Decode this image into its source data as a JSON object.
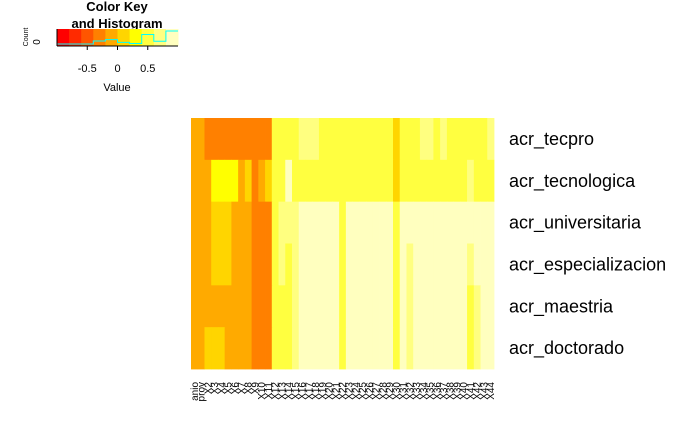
{
  "chart_data": {
    "type": "heatmap",
    "title": "",
    "rows": [
      "acr_tecpro",
      "acr_tecnologica",
      "acr_universitaria",
      "acr_especializacion",
      "acr_maestria",
      "acr_doctorado"
    ],
    "columns": [
      "anio",
      "prov",
      "X2",
      "X3",
      "X4",
      "X5",
      "X6",
      "X7",
      "X8",
      "X9",
      "X10",
      "X11",
      "X12",
      "X13",
      "X14",
      "X15",
      "X16",
      "X17",
      "X18",
      "X19",
      "X20",
      "X21",
      "X22",
      "X23",
      "X24",
      "X25",
      "X26",
      "X27",
      "X28",
      "X29",
      "X30",
      "X31",
      "X32",
      "X33",
      "X34",
      "X35",
      "X36",
      "X37",
      "X38",
      "X39",
      "X40",
      "X41",
      "X42",
      "X43",
      "X44"
    ],
    "values": [
      [
        -0.1,
        -0.1,
        -0.3,
        -0.3,
        -0.3,
        -0.3,
        -0.3,
        -0.3,
        -0.3,
        -0.4,
        -0.3,
        -0.3,
        0.4,
        0.4,
        0.4,
        0.5,
        0.6,
        0.6,
        0.6,
        0.5,
        0.5,
        0.5,
        0.5,
        0.4,
        0.4,
        0.4,
        0.4,
        0.4,
        0.5,
        0.5,
        0.1,
        0.4,
        0.4,
        0.5,
        0.6,
        0.6,
        0.5,
        0.6,
        0.5,
        0.5,
        0.4,
        0.4,
        0.5,
        0.4,
        0.6
      ],
      [
        -0.1,
        -0.1,
        -0.2,
        0.2,
        0.3,
        0.3,
        0.2,
        -0.1,
        0.0,
        -0.4,
        -0.1,
        0.1,
        0.4,
        0.5,
        0.8,
        0.4,
        0.4,
        0.4,
        0.4,
        0.4,
        0.4,
        0.4,
        0.4,
        0.4,
        0.4,
        0.4,
        0.4,
        0.5,
        0.4,
        0.5,
        0.1,
        0.5,
        0.5,
        0.4,
        0.4,
        0.4,
        0.4,
        0.5,
        0.5,
        0.4,
        0.5,
        0.6,
        0.4,
        0.4,
        0.5
      ],
      [
        -0.1,
        -0.2,
        -0.1,
        0.1,
        0.1,
        0.1,
        -0.1,
        -0.1,
        -0.1,
        -0.4,
        -0.4,
        -0.4,
        0.5,
        0.7,
        0.7,
        0.7,
        0.8,
        0.8,
        0.8,
        0.8,
        0.8,
        0.8,
        0.5,
        0.8,
        0.8,
        0.8,
        0.8,
        0.8,
        0.8,
        0.8,
        0.5,
        0.8,
        0.8,
        0.8,
        0.8,
        0.8,
        0.8,
        0.8,
        0.8,
        0.8,
        0.8,
        0.8,
        0.8,
        0.8,
        0.8
      ],
      [
        -0.1,
        -0.2,
        -0.1,
        0.0,
        0.0,
        0.0,
        -0.1,
        -0.1,
        -0.2,
        -0.4,
        -0.4,
        -0.4,
        0.5,
        0.7,
        0.5,
        0.7,
        0.8,
        0.8,
        0.8,
        0.8,
        0.8,
        0.8,
        0.4,
        0.8,
        0.8,
        0.8,
        0.8,
        0.8,
        0.8,
        0.8,
        0.5,
        0.8,
        0.6,
        0.8,
        0.8,
        0.8,
        0.8,
        0.8,
        0.8,
        0.8,
        0.8,
        0.6,
        0.8,
        0.8,
        0.8
      ],
      [
        -0.1,
        -0.2,
        -0.1,
        -0.1,
        -0.1,
        -0.1,
        -0.1,
        -0.1,
        -0.2,
        -0.4,
        -0.4,
        -0.4,
        0.4,
        0.5,
        0.4,
        0.7,
        0.8,
        0.8,
        0.8,
        0.8,
        0.8,
        0.8,
        0.4,
        0.8,
        0.8,
        0.8,
        0.8,
        0.8,
        0.8,
        0.8,
        0.5,
        0.8,
        0.6,
        0.8,
        0.8,
        0.8,
        0.8,
        0.8,
        0.8,
        0.8,
        0.8,
        0.4,
        0.7,
        0.8,
        0.8
      ],
      [
        -0.1,
        -0.1,
        0.1,
        0.1,
        0.1,
        -0.1,
        -0.1,
        -0.1,
        -0.1,
        -0.4,
        -0.4,
        -0.4,
        0.4,
        0.5,
        0.5,
        0.7,
        0.8,
        0.8,
        0.8,
        0.8,
        0.8,
        0.8,
        0.4,
        0.8,
        0.8,
        0.8,
        0.8,
        0.8,
        0.8,
        0.8,
        0.5,
        0.8,
        0.6,
        0.8,
        0.8,
        0.8,
        0.8,
        0.8,
        0.8,
        0.8,
        0.8,
        0.5,
        0.7,
        0.8,
        0.8
      ]
    ],
    "color_key": {
      "title": "Color Key\nand Histogram",
      "xlabel": "Value",
      "ylabel": "Count",
      "y_tick": "0",
      "x_ticks": [
        "-0.5",
        "0",
        "0.5"
      ],
      "x_tick_values": [
        -0.5,
        0,
        0.5
      ],
      "range": [
        -1,
        1
      ],
      "histogram_color": "#00ffff",
      "palette": [
        "#ff0000",
        "#ff2a00",
        "#ff5500",
        "#ff8000",
        "#ffaa00",
        "#ffd500",
        "#ffff00",
        "#ffff40",
        "#ffff80",
        "#ffffbf"
      ]
    },
    "legend_placement": "top-left",
    "grid": false
  }
}
